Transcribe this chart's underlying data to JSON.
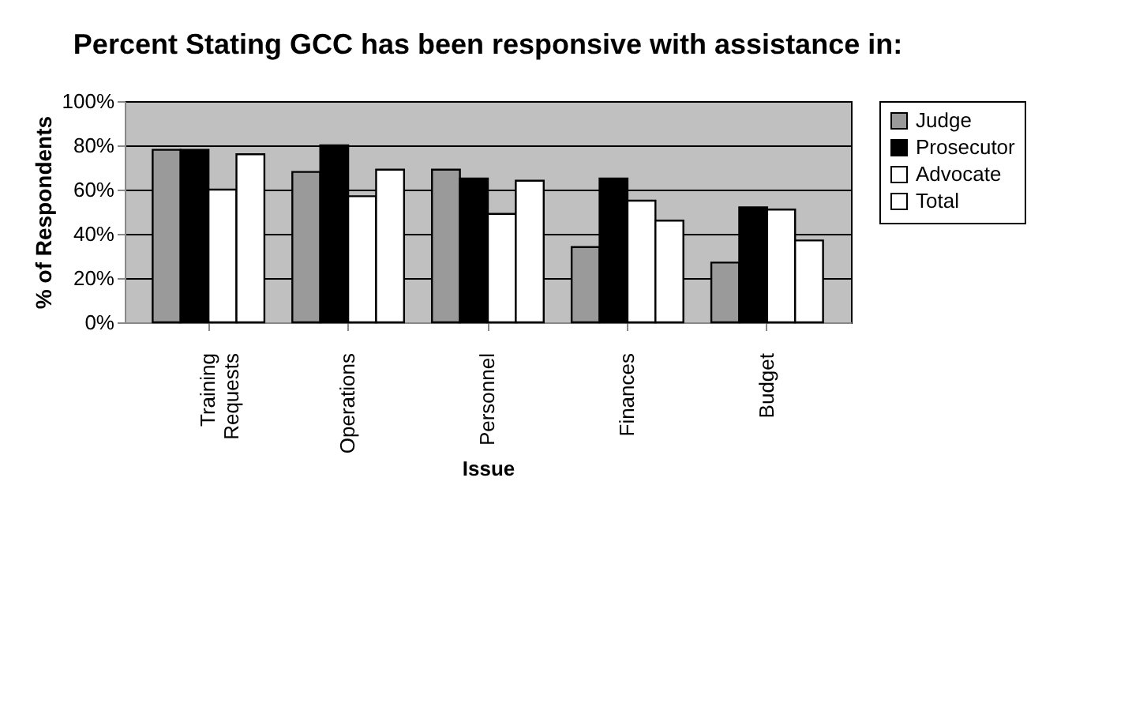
{
  "chart_data": {
    "type": "bar",
    "title": "Percent Stating GCC has been responsive with assistance in:",
    "xlabel": "Issue",
    "ylabel": "% of Respondents",
    "categories": [
      "Training Requests",
      "Operations",
      "Personnel",
      "Finances",
      "Budget"
    ],
    "series": [
      {
        "name": "Judge",
        "color": "#9a9a9a",
        "values": [
          78,
          68,
          69,
          34,
          27
        ]
      },
      {
        "name": "Prosecutor",
        "color": "#000000",
        "values": [
          78,
          80,
          65,
          65,
          52
        ]
      },
      {
        "name": "Advocate",
        "color": "#ffffff",
        "values": [
          60,
          57,
          49,
          55,
          51
        ]
      },
      {
        "name": "Total",
        "color": "#ffffff",
        "values": [
          76,
          69,
          64,
          46,
          37
        ]
      }
    ],
    "ylim": [
      0,
      100
    ],
    "yticks": [
      {
        "value": 0,
        "label": "0%"
      },
      {
        "value": 20,
        "label": "20%"
      },
      {
        "value": 40,
        "label": "40%"
      },
      {
        "value": 60,
        "label": "60%"
      },
      {
        "value": 80,
        "label": "80%"
      },
      {
        "value": 100,
        "label": "100%"
      }
    ],
    "grid": "y",
    "legend": "right"
  }
}
